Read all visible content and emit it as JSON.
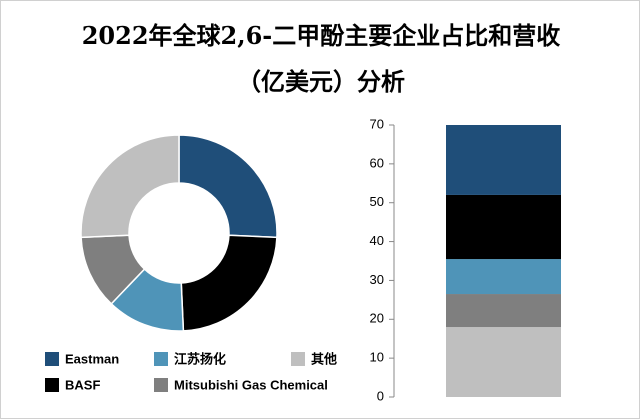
{
  "chart_data": [
    {
      "type": "pie",
      "title": "2022年全球2,6-二甲酚主要企业占比和营收（亿美元）分析",
      "categories": [
        "Eastman",
        "BASF",
        "江苏扬化",
        "Mitsubishi Gas Chemical",
        "其他"
      ],
      "values": [
        18,
        16.5,
        9,
        8.5,
        18
      ],
      "colors": [
        "#1f4e79",
        "#000000",
        "#4f94b8",
        "#7f7f7f",
        "#bfbfbf"
      ],
      "legend": "bottom"
    },
    {
      "type": "stacked-bar",
      "values": [
        18,
        16.5,
        9,
        8.5,
        18
      ],
      "colors": [
        "#1f4e79",
        "#000000",
        "#4f94b8",
        "#7f7f7f",
        "#bfbfbf"
      ],
      "ylim": [
        0,
        70
      ],
      "yticks": [
        0,
        10,
        20,
        30,
        40,
        50,
        60,
        70
      ]
    }
  ]
}
